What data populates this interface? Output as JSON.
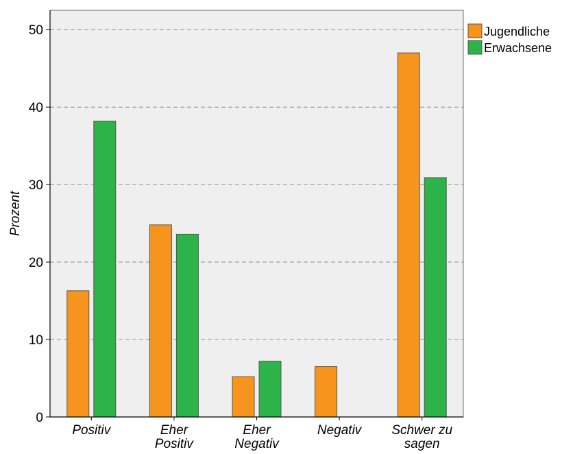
{
  "chart_data": {
    "type": "bar",
    "title": "",
    "xlabel": "",
    "ylabel": "Prozent",
    "ylim": [
      0,
      52.5
    ],
    "yticks": [
      0,
      10,
      20,
      30,
      40,
      50
    ],
    "grid": true,
    "legend_position": "top-right",
    "categories": [
      [
        "Positiv"
      ],
      [
        "Eher",
        "Positiv"
      ],
      [
        "Eher",
        "Negativ"
      ],
      [
        "Negativ"
      ],
      [
        "Schwer zu",
        "sagen"
      ]
    ],
    "series": [
      {
        "name": "Jugendliche",
        "color": "#F7941D",
        "values": [
          16.3,
          24.8,
          5.2,
          6.5,
          47.0
        ]
      },
      {
        "name": "Erwachsene",
        "color": "#2CB34A",
        "values": [
          38.2,
          23.6,
          7.2,
          0.0,
          30.9
        ]
      }
    ],
    "colors": {
      "plot_background": "#EFEFEF",
      "grid": "#8C8C8C",
      "bar_border": "#555555"
    }
  }
}
